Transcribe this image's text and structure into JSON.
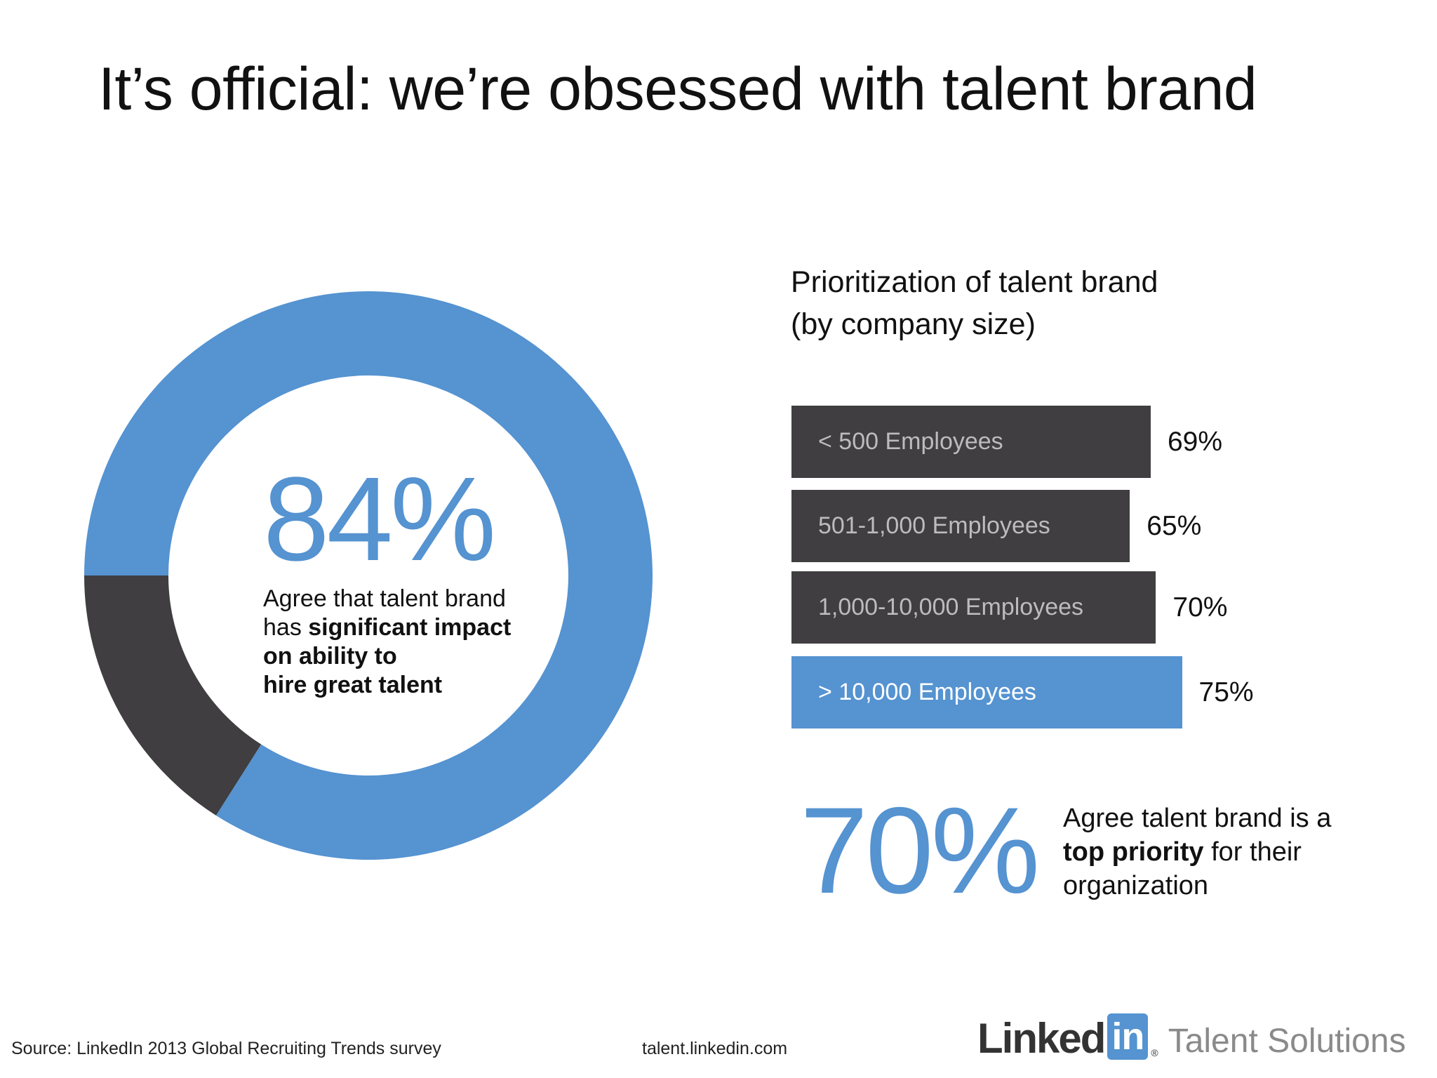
{
  "slide": {
    "title": "It’s official: we’re obsessed with talent brand"
  },
  "donut": {
    "value_label": "84%",
    "text_plain_1": "Agree that talent brand",
    "text_plain_2": "has ",
    "text_bold_1": "significant impact",
    "text_bold_2": "on ability to",
    "text_bold_3": "hire great talent"
  },
  "bar_chart_title": {
    "line1": "Prioritization of talent brand",
    "line2": "(by company size)"
  },
  "callout": {
    "value_label": "70%",
    "line1": "Agree talent brand is a",
    "bold": "top priority",
    "line2_rest": " for their",
    "line3": "organization"
  },
  "footer": {
    "source": "Source: LinkedIn 2013 Global Recruiting Trends survey",
    "url": "talent.linkedin.com",
    "logo_linked": "Linked",
    "logo_in": "in",
    "logo_dot": "®",
    "logo_product": "Talent Solutions"
  },
  "colors": {
    "accent_blue": "#5593d1",
    "dark_gray": "#403e40"
  },
  "chart_data": [
    {
      "type": "pie",
      "variant": "donut",
      "values": [
        84,
        16
      ],
      "colors": [
        "#5593d1",
        "#403e40"
      ],
      "center_label": "84%"
    },
    {
      "type": "bar",
      "orientation": "horizontal",
      "title": "Prioritization of talent brand (by company size)",
      "categories": [
        "< 500 Employees",
        "501-1,000 Employees",
        "1,000-10,000 Employees",
        "> 10,000 Employees"
      ],
      "values": [
        69,
        65,
        70,
        75
      ],
      "value_labels": [
        "69%",
        "65%",
        "70%",
        "75%"
      ],
      "highlight_index": 3,
      "xlim": [
        0,
        100
      ],
      "grid": false
    }
  ]
}
